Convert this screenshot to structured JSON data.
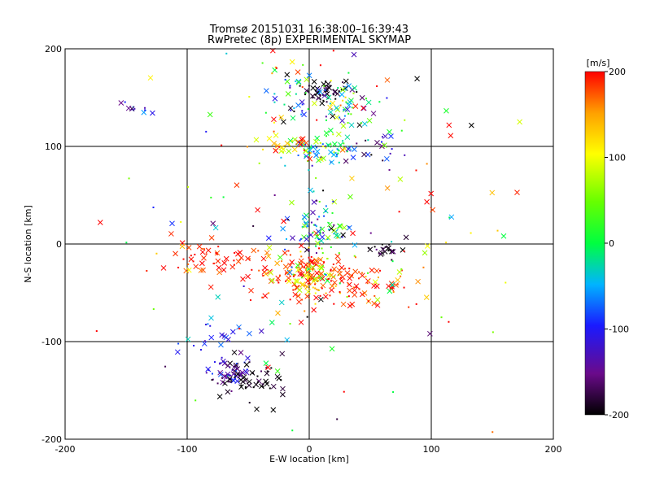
{
  "chart_data": {
    "type": "scatter",
    "title": "Tromsø 20151031 16:38:00–16:39:43",
    "subtitle": "RwPretec (8p) EXPERIMENTAL SKYMAP",
    "xlabel": "E-W location [km]",
    "ylabel": "N-S location [km]",
    "xlim": [
      -200,
      200
    ],
    "ylim": [
      -200,
      200
    ],
    "xticks": [
      -200,
      -100,
      0,
      100,
      200
    ],
    "yticks": [
      -200,
      -100,
      0,
      100,
      200
    ],
    "grid": true,
    "colorbar": {
      "label": "[m/s]",
      "range": [
        -200,
        200
      ],
      "ticks": [
        200,
        100,
        0,
        -100,
        -200
      ],
      "colormap": "rainbow (black-purple-blue-cyan-green-yellow-red)"
    },
    "markers": [
      "x",
      "dot"
    ],
    "clusters": [
      {
        "x": 15,
        "y": 158,
        "sx": 10,
        "sy": 6,
        "n": 40,
        "v": -195,
        "vs": 15
      },
      {
        "x": 10,
        "y": 145,
        "sx": 18,
        "sy": 10,
        "n": 45,
        "v": -80,
        "vs": 80
      },
      {
        "x": 35,
        "y": 140,
        "sx": 15,
        "sy": 12,
        "n": 35,
        "v": 30,
        "vs": 80
      },
      {
        "x": -145,
        "y": 138,
        "sx": 12,
        "sy": 4,
        "n": 12,
        "v": -110,
        "vs": 25
      },
      {
        "x": 10,
        "y": 95,
        "sx": 15,
        "sy": 8,
        "n": 70,
        "v": -20,
        "vs": 60
      },
      {
        "x": -20,
        "y": 100,
        "sx": 15,
        "sy": 6,
        "n": 30,
        "v": 140,
        "vs": 50
      },
      {
        "x": 50,
        "y": 95,
        "sx": 12,
        "sy": 10,
        "n": 20,
        "v": -150,
        "vs": 40
      },
      {
        "x": 5,
        "y": 15,
        "sx": 15,
        "sy": 10,
        "n": 70,
        "v": -40,
        "vs": 80
      },
      {
        "x": 60,
        "y": -5,
        "sx": 8,
        "sy": 8,
        "n": 25,
        "v": -190,
        "vs": 20
      },
      {
        "x": -80,
        "y": -15,
        "sx": 25,
        "sy": 10,
        "n": 50,
        "v": 190,
        "vs": 15
      },
      {
        "x": 0,
        "y": -30,
        "sx": 25,
        "sy": 12,
        "n": 110,
        "v": 190,
        "vs": 20
      },
      {
        "x": 0,
        "y": -35,
        "sx": 15,
        "sy": 12,
        "n": 70,
        "v": 100,
        "vs": 60
      },
      {
        "x": 40,
        "y": -45,
        "sx": 30,
        "sy": 12,
        "n": 70,
        "v": 185,
        "vs": 25
      },
      {
        "x": -65,
        "y": -130,
        "sx": 8,
        "sy": 8,
        "n": 60,
        "v": -140,
        "vs": 40
      },
      {
        "x": -45,
        "y": -140,
        "sx": 14,
        "sy": 12,
        "n": 50,
        "v": -195,
        "vs": 15
      },
      {
        "x": -80,
        "y": -95,
        "sx": 12,
        "sy": 10,
        "n": 20,
        "v": -100,
        "vs": 30
      },
      {
        "x": -10,
        "y": 160,
        "sx": 25,
        "sy": 25,
        "n": 40,
        "v": 50,
        "vs": 150
      },
      {
        "x": 0,
        "y": 0,
        "sx": 90,
        "sy": 90,
        "n": 140,
        "v": 50,
        "vs": 150
      }
    ]
  }
}
